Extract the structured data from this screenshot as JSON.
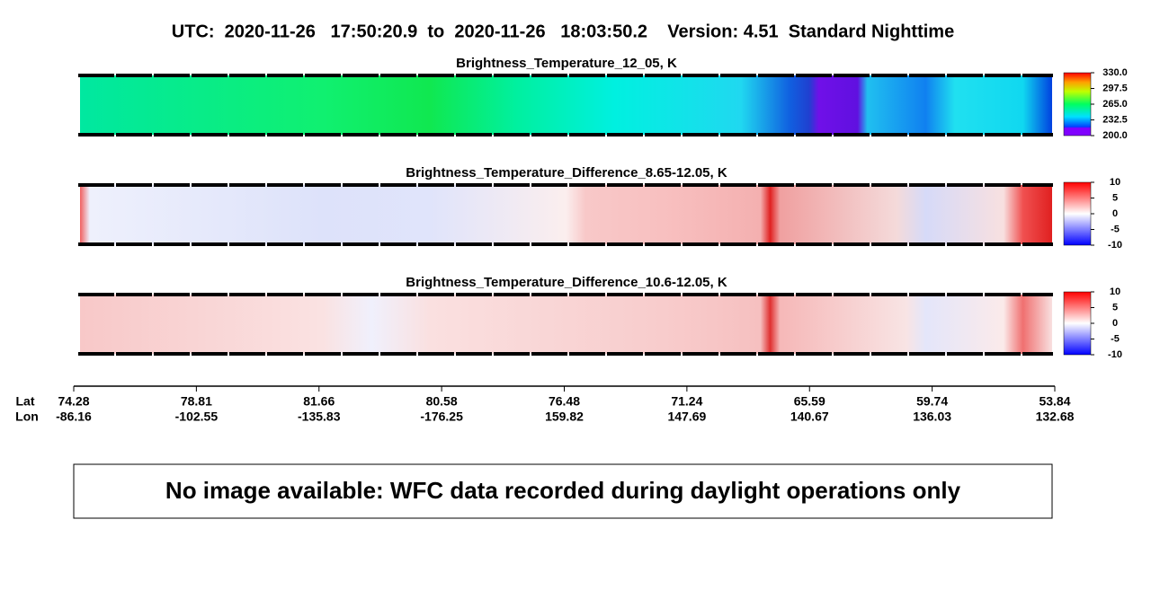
{
  "header": {
    "title": "UTC:  2020-11-26   17:50:20.9  to  2020-11-26   18:03:50.2    Version: 4.51  Standard Nighttime"
  },
  "panels": [
    {
      "title": "Brightness_Temperature_12_05, K",
      "colorbar": {
        "range": [
          200,
          330
        ],
        "ticks": [
          {
            "value": 330,
            "label": "330.0"
          },
          {
            "value": 297.5,
            "label": "297.5"
          },
          {
            "value": 265,
            "label": "265.0"
          },
          {
            "value": 232.5,
            "label": "232.5"
          },
          {
            "value": 200,
            "label": "200.0"
          }
        ]
      }
    },
    {
      "title": "Brightness_Temperature_Difference_8.65-12.05, K",
      "colorbar": {
        "range": [
          -10,
          10
        ],
        "ticks": [
          10,
          5,
          0,
          -5,
          -10
        ]
      }
    },
    {
      "title": "Brightness_Temperature_Difference_10.6-12.05, K",
      "colorbar": {
        "range": [
          -10,
          10
        ],
        "ticks": [
          10,
          5,
          0,
          -5,
          -10
        ]
      }
    }
  ],
  "axis": {
    "lat_label": "Lat",
    "lon_label": "Lon",
    "lat": [
      "74.28",
      "78.81",
      "81.66",
      "80.58",
      "76.48",
      "71.24",
      "65.59",
      "59.74",
      "53.84"
    ],
    "lon": [
      "-86.16",
      "-102.55",
      "-135.83",
      "-176.25",
      "159.82",
      "147.69",
      "140.67",
      "136.03",
      "132.68"
    ]
  },
  "note": "No image available: WFC data recorded during daylight operations only"
}
